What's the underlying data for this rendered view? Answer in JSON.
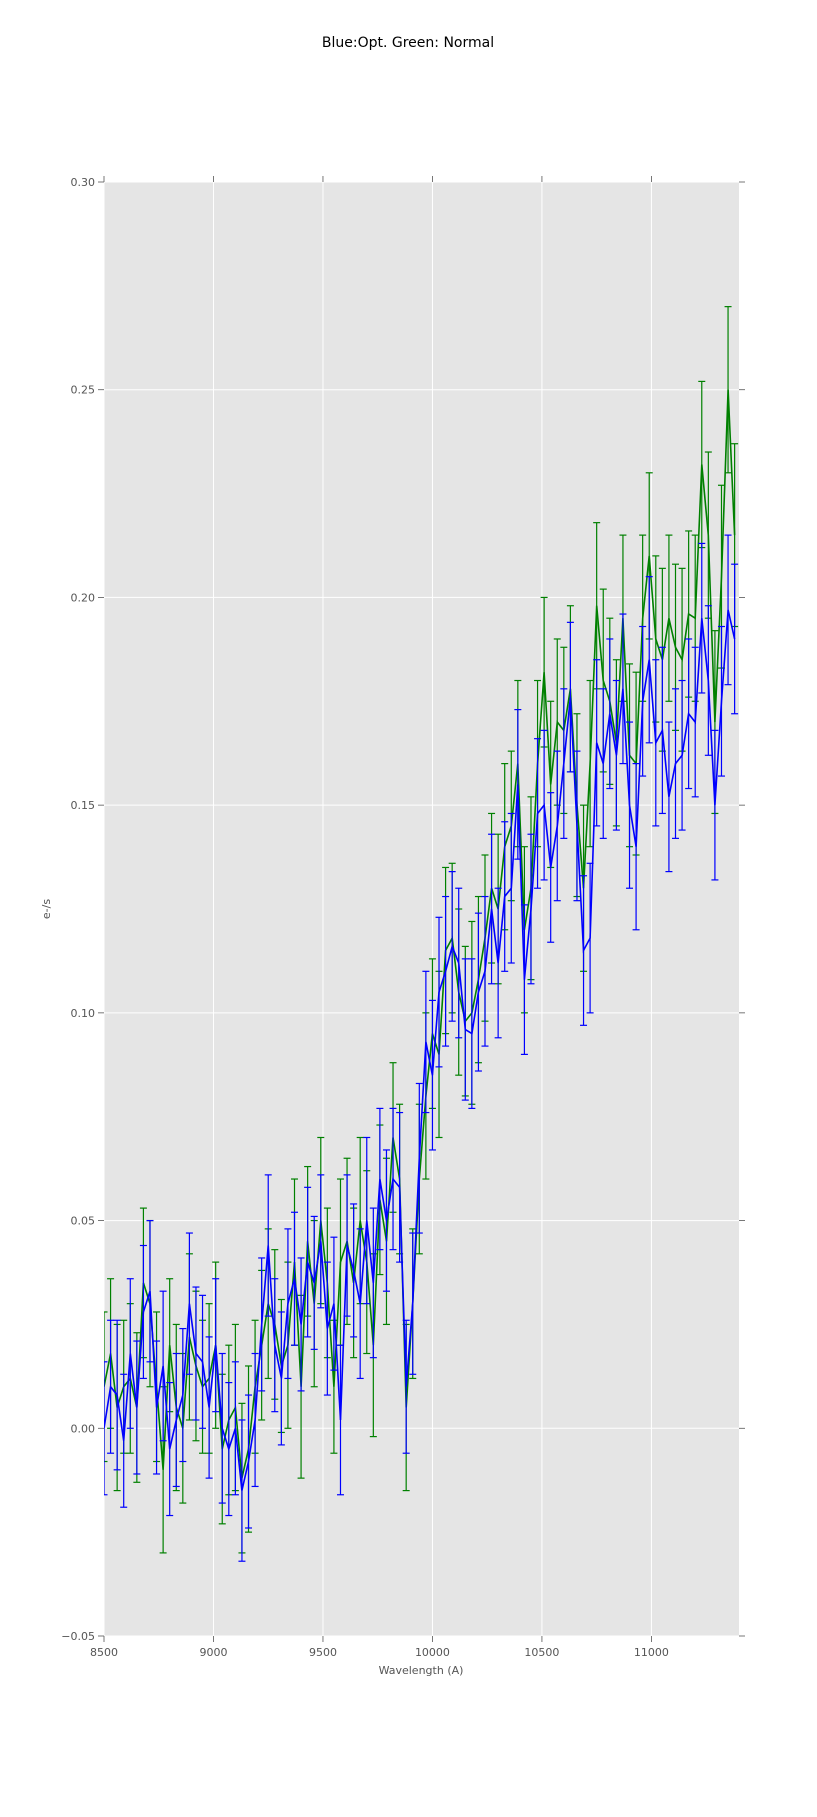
{
  "chart_data": {
    "type": "line",
    "title": "Blue:Opt. Green: Normal",
    "xlabel": "Wavelength (A)",
    "ylabel": "e-/s",
    "xlim": [
      8500,
      11400
    ],
    "ylim": [
      -0.05,
      0.3
    ],
    "grid": true,
    "x_ticks": [
      "8500",
      "9000",
      "9500",
      "10000",
      "10500",
      "11000"
    ],
    "x_tick_values": [
      8500,
      9000,
      9500,
      10000,
      10500,
      11000
    ],
    "y_ticks": [
      "−0.05",
      "0.00",
      "0.05",
      "0.10",
      "0.15",
      "0.20",
      "0.25",
      "0.30"
    ],
    "y_tick_values": [
      -0.05,
      0,
      0.05,
      0.1,
      0.15,
      0.2,
      0.25,
      0.3
    ],
    "x_start": 8500,
    "x_step": 30,
    "series": [
      {
        "name": "Normal",
        "color": "#008000",
        "values": [
          0.01,
          0.018,
          0.005,
          0.01,
          0.012,
          0.005,
          0.035,
          0.03,
          0.01,
          -0.01,
          0.02,
          0.005,
          0.0,
          0.022,
          0.015,
          0.01,
          0.012,
          0.02,
          -0.005,
          0.002,
          0.005,
          -0.012,
          -0.005,
          0.01,
          0.02,
          0.03,
          0.025,
          0.015,
          0.02,
          0.04,
          0.01,
          0.045,
          0.03,
          0.05,
          0.035,
          0.01,
          0.04,
          0.045,
          0.035,
          0.05,
          0.04,
          0.02,
          0.055,
          0.045,
          0.07,
          0.06,
          0.005,
          0.03,
          0.06,
          0.08,
          0.095,
          0.09,
          0.115,
          0.118,
          0.105,
          0.098,
          0.1,
          0.108,
          0.118,
          0.13,
          0.125,
          0.14,
          0.145,
          0.16,
          0.12,
          0.13,
          0.16,
          0.182,
          0.155,
          0.17,
          0.168,
          0.178,
          0.15,
          0.13,
          0.16,
          0.198,
          0.18,
          0.175,
          0.165,
          0.195,
          0.162,
          0.16,
          0.195,
          0.21,
          0.19,
          0.185,
          0.195,
          0.188,
          0.185,
          0.196,
          0.195,
          0.232,
          0.215,
          0.17,
          0.205,
          0.25,
          0.215
        ],
        "errors": [
          0.018,
          0.018,
          0.02,
          0.016,
          0.018,
          0.018,
          0.018,
          0.02,
          0.018,
          0.02,
          0.016,
          0.02,
          0.018,
          0.02,
          0.018,
          0.016,
          0.018,
          0.02,
          0.018,
          0.018,
          0.02,
          0.018,
          0.02,
          0.016,
          0.018,
          0.018,
          0.018,
          0.016,
          0.02,
          0.02,
          0.022,
          0.018,
          0.02,
          0.02,
          0.018,
          0.016,
          0.02,
          0.02,
          0.018,
          0.02,
          0.022,
          0.022,
          0.018,
          0.02,
          0.018,
          0.018,
          0.02,
          0.018,
          0.018,
          0.02,
          0.018,
          0.02,
          0.02,
          0.018,
          0.02,
          0.018,
          0.022,
          0.02,
          0.02,
          0.018,
          0.018,
          0.02,
          0.018,
          0.02,
          0.02,
          0.022,
          0.02,
          0.018,
          0.02,
          0.02,
          0.02,
          0.02,
          0.022,
          0.02,
          0.02,
          0.02,
          0.022,
          0.02,
          0.02,
          0.02,
          0.022,
          0.022,
          0.02,
          0.02,
          0.02,
          0.022,
          0.02,
          0.02,
          0.022,
          0.02,
          0.02,
          0.02,
          0.02,
          0.022,
          0.022,
          0.02,
          0.022
        ]
      },
      {
        "name": "Opt.",
        "color": "#0000ff",
        "values": [
          0.0,
          0.01,
          0.008,
          -0.003,
          0.018,
          0.005,
          0.028,
          0.033,
          0.005,
          0.015,
          -0.005,
          0.002,
          0.008,
          0.03,
          0.018,
          0.016,
          0.005,
          0.02,
          0.0,
          -0.005,
          0.0,
          -0.015,
          -0.008,
          0.002,
          0.025,
          0.044,
          0.02,
          0.012,
          0.03,
          0.036,
          0.025,
          0.04,
          0.035,
          0.045,
          0.024,
          0.03,
          0.002,
          0.044,
          0.038,
          0.03,
          0.05,
          0.035,
          0.06,
          0.05,
          0.06,
          0.058,
          0.01,
          0.03,
          0.065,
          0.093,
          0.085,
          0.105,
          0.11,
          0.116,
          0.112,
          0.096,
          0.095,
          0.105,
          0.11,
          0.125,
          0.112,
          0.128,
          0.13,
          0.155,
          0.108,
          0.125,
          0.148,
          0.15,
          0.135,
          0.145,
          0.16,
          0.176,
          0.145,
          0.115,
          0.118,
          0.165,
          0.16,
          0.172,
          0.162,
          0.178,
          0.15,
          0.14,
          0.175,
          0.185,
          0.165,
          0.168,
          0.152,
          0.16,
          0.162,
          0.172,
          0.17,
          0.195,
          0.18,
          0.15,
          0.175,
          0.197,
          0.19
        ],
        "errors": [
          0.016,
          0.016,
          0.018,
          0.016,
          0.018,
          0.016,
          0.016,
          0.017,
          0.016,
          0.018,
          0.016,
          0.016,
          0.016,
          0.017,
          0.016,
          0.016,
          0.017,
          0.016,
          0.018,
          0.016,
          0.016,
          0.017,
          0.016,
          0.016,
          0.016,
          0.017,
          0.016,
          0.016,
          0.018,
          0.016,
          0.016,
          0.018,
          0.016,
          0.016,
          0.016,
          0.016,
          0.018,
          0.017,
          0.016,
          0.018,
          0.02,
          0.018,
          0.017,
          0.017,
          0.017,
          0.018,
          0.016,
          0.017,
          0.018,
          0.017,
          0.018,
          0.018,
          0.018,
          0.018,
          0.018,
          0.017,
          0.018,
          0.019,
          0.018,
          0.018,
          0.018,
          0.018,
          0.018,
          0.018,
          0.018,
          0.018,
          0.018,
          0.018,
          0.018,
          0.018,
          0.018,
          0.018,
          0.018,
          0.018,
          0.018,
          0.02,
          0.018,
          0.018,
          0.018,
          0.018,
          0.02,
          0.02,
          0.018,
          0.02,
          0.02,
          0.02,
          0.018,
          0.018,
          0.018,
          0.018,
          0.018,
          0.018,
          0.018,
          0.018,
          0.018,
          0.018,
          0.018
        ]
      }
    ]
  }
}
